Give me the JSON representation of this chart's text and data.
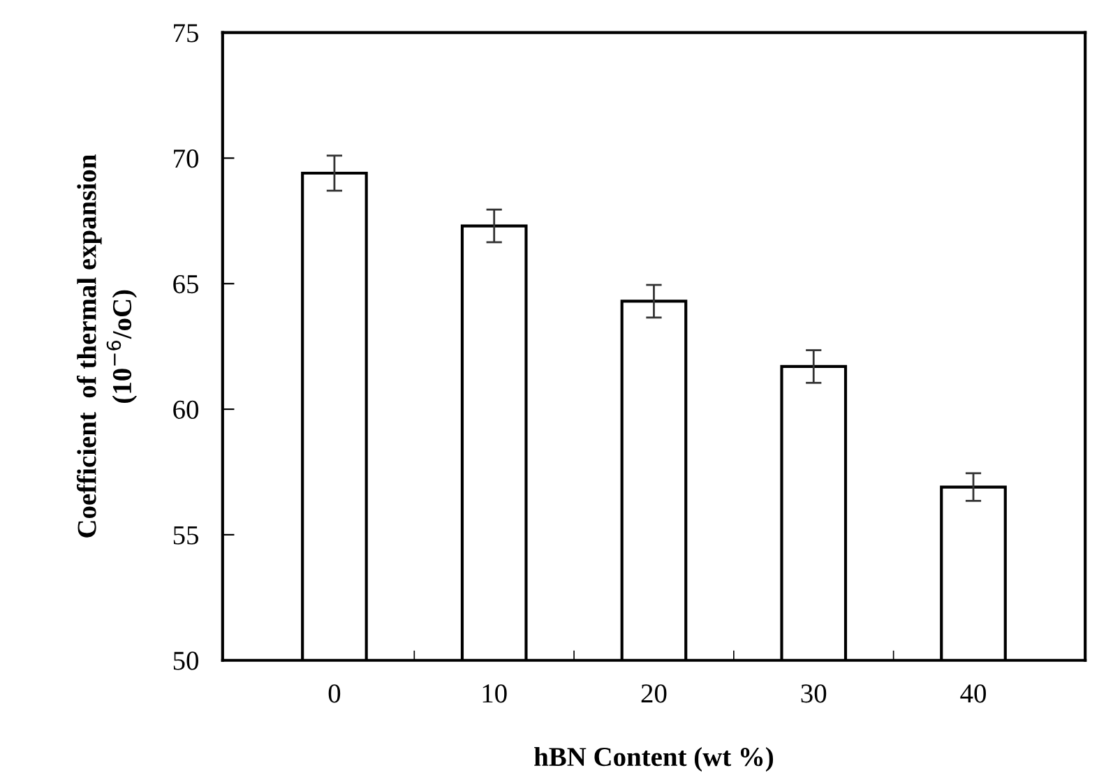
{
  "chart_data": {
    "type": "bar",
    "xlabel": "hBN Content (wt %)",
    "ylabel": "Coefficient  of thermal expansion\n(10$^{−6}$/oC)",
    "categories": [
      "0",
      "10",
      "20",
      "30",
      "40"
    ],
    "values": [
      69.4,
      67.3,
      64.3,
      61.7,
      56.9
    ],
    "errors": [
      0.7,
      0.65,
      0.65,
      0.65,
      0.55
    ],
    "color": "#ffffff",
    "ylim": [
      50,
      75
    ],
    "yticks": [
      50,
      55,
      60,
      65,
      70,
      75
    ],
    "grid": false
  }
}
